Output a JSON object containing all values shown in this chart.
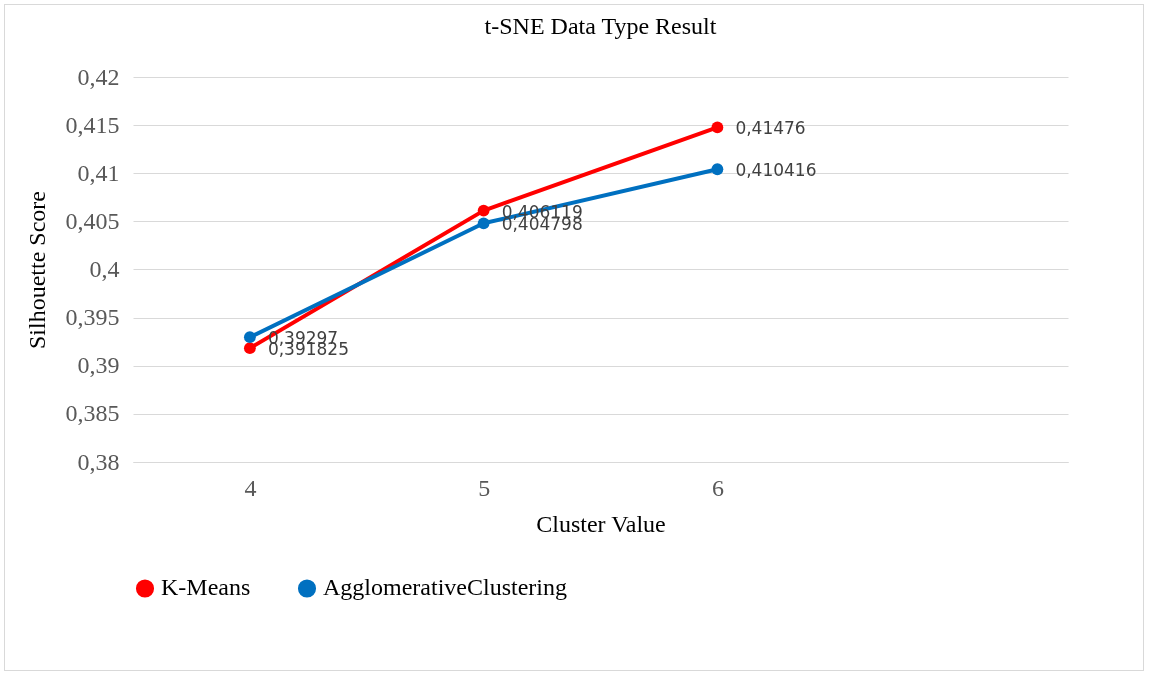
{
  "chart_data": {
    "type": "line",
    "title": "t-SNE Data Type Result",
    "xlabel": "Cluster Value",
    "ylabel": "Silhouette Score",
    "categories": [
      "4",
      "5",
      "6",
      null
    ],
    "series": [
      {
        "name": "K-Means",
        "color": "#ff0000",
        "values": [
          0.391825,
          0.406119,
          0.41476,
          null
        ],
        "value_labels": [
          "0,391825",
          "0,406119",
          "0,41476",
          null
        ]
      },
      {
        "name": "AgglomerativeClustering",
        "color": "#0070c0",
        "values": [
          0.39297,
          0.404798,
          0.410416,
          null
        ],
        "value_labels": [
          "0,39297",
          "0,404798",
          "0,410416",
          null
        ]
      }
    ],
    "ylim": [
      0.38,
      0.42
    ],
    "yticks": [
      {
        "value": 0.38,
        "label": "0,38"
      },
      {
        "value": 0.385,
        "label": "0,385"
      },
      {
        "value": 0.39,
        "label": "0,39"
      },
      {
        "value": 0.395,
        "label": "0,395"
      },
      {
        "value": 0.4,
        "label": "0,4"
      },
      {
        "value": 0.405,
        "label": "0,405"
      },
      {
        "value": 0.41,
        "label": "0,41"
      },
      {
        "value": 0.415,
        "label": "0,415"
      },
      {
        "value": 0.42,
        "label": "0,42"
      }
    ],
    "grid": "y",
    "legend": "bottom",
    "marker": "circle",
    "line_style": "solid"
  }
}
